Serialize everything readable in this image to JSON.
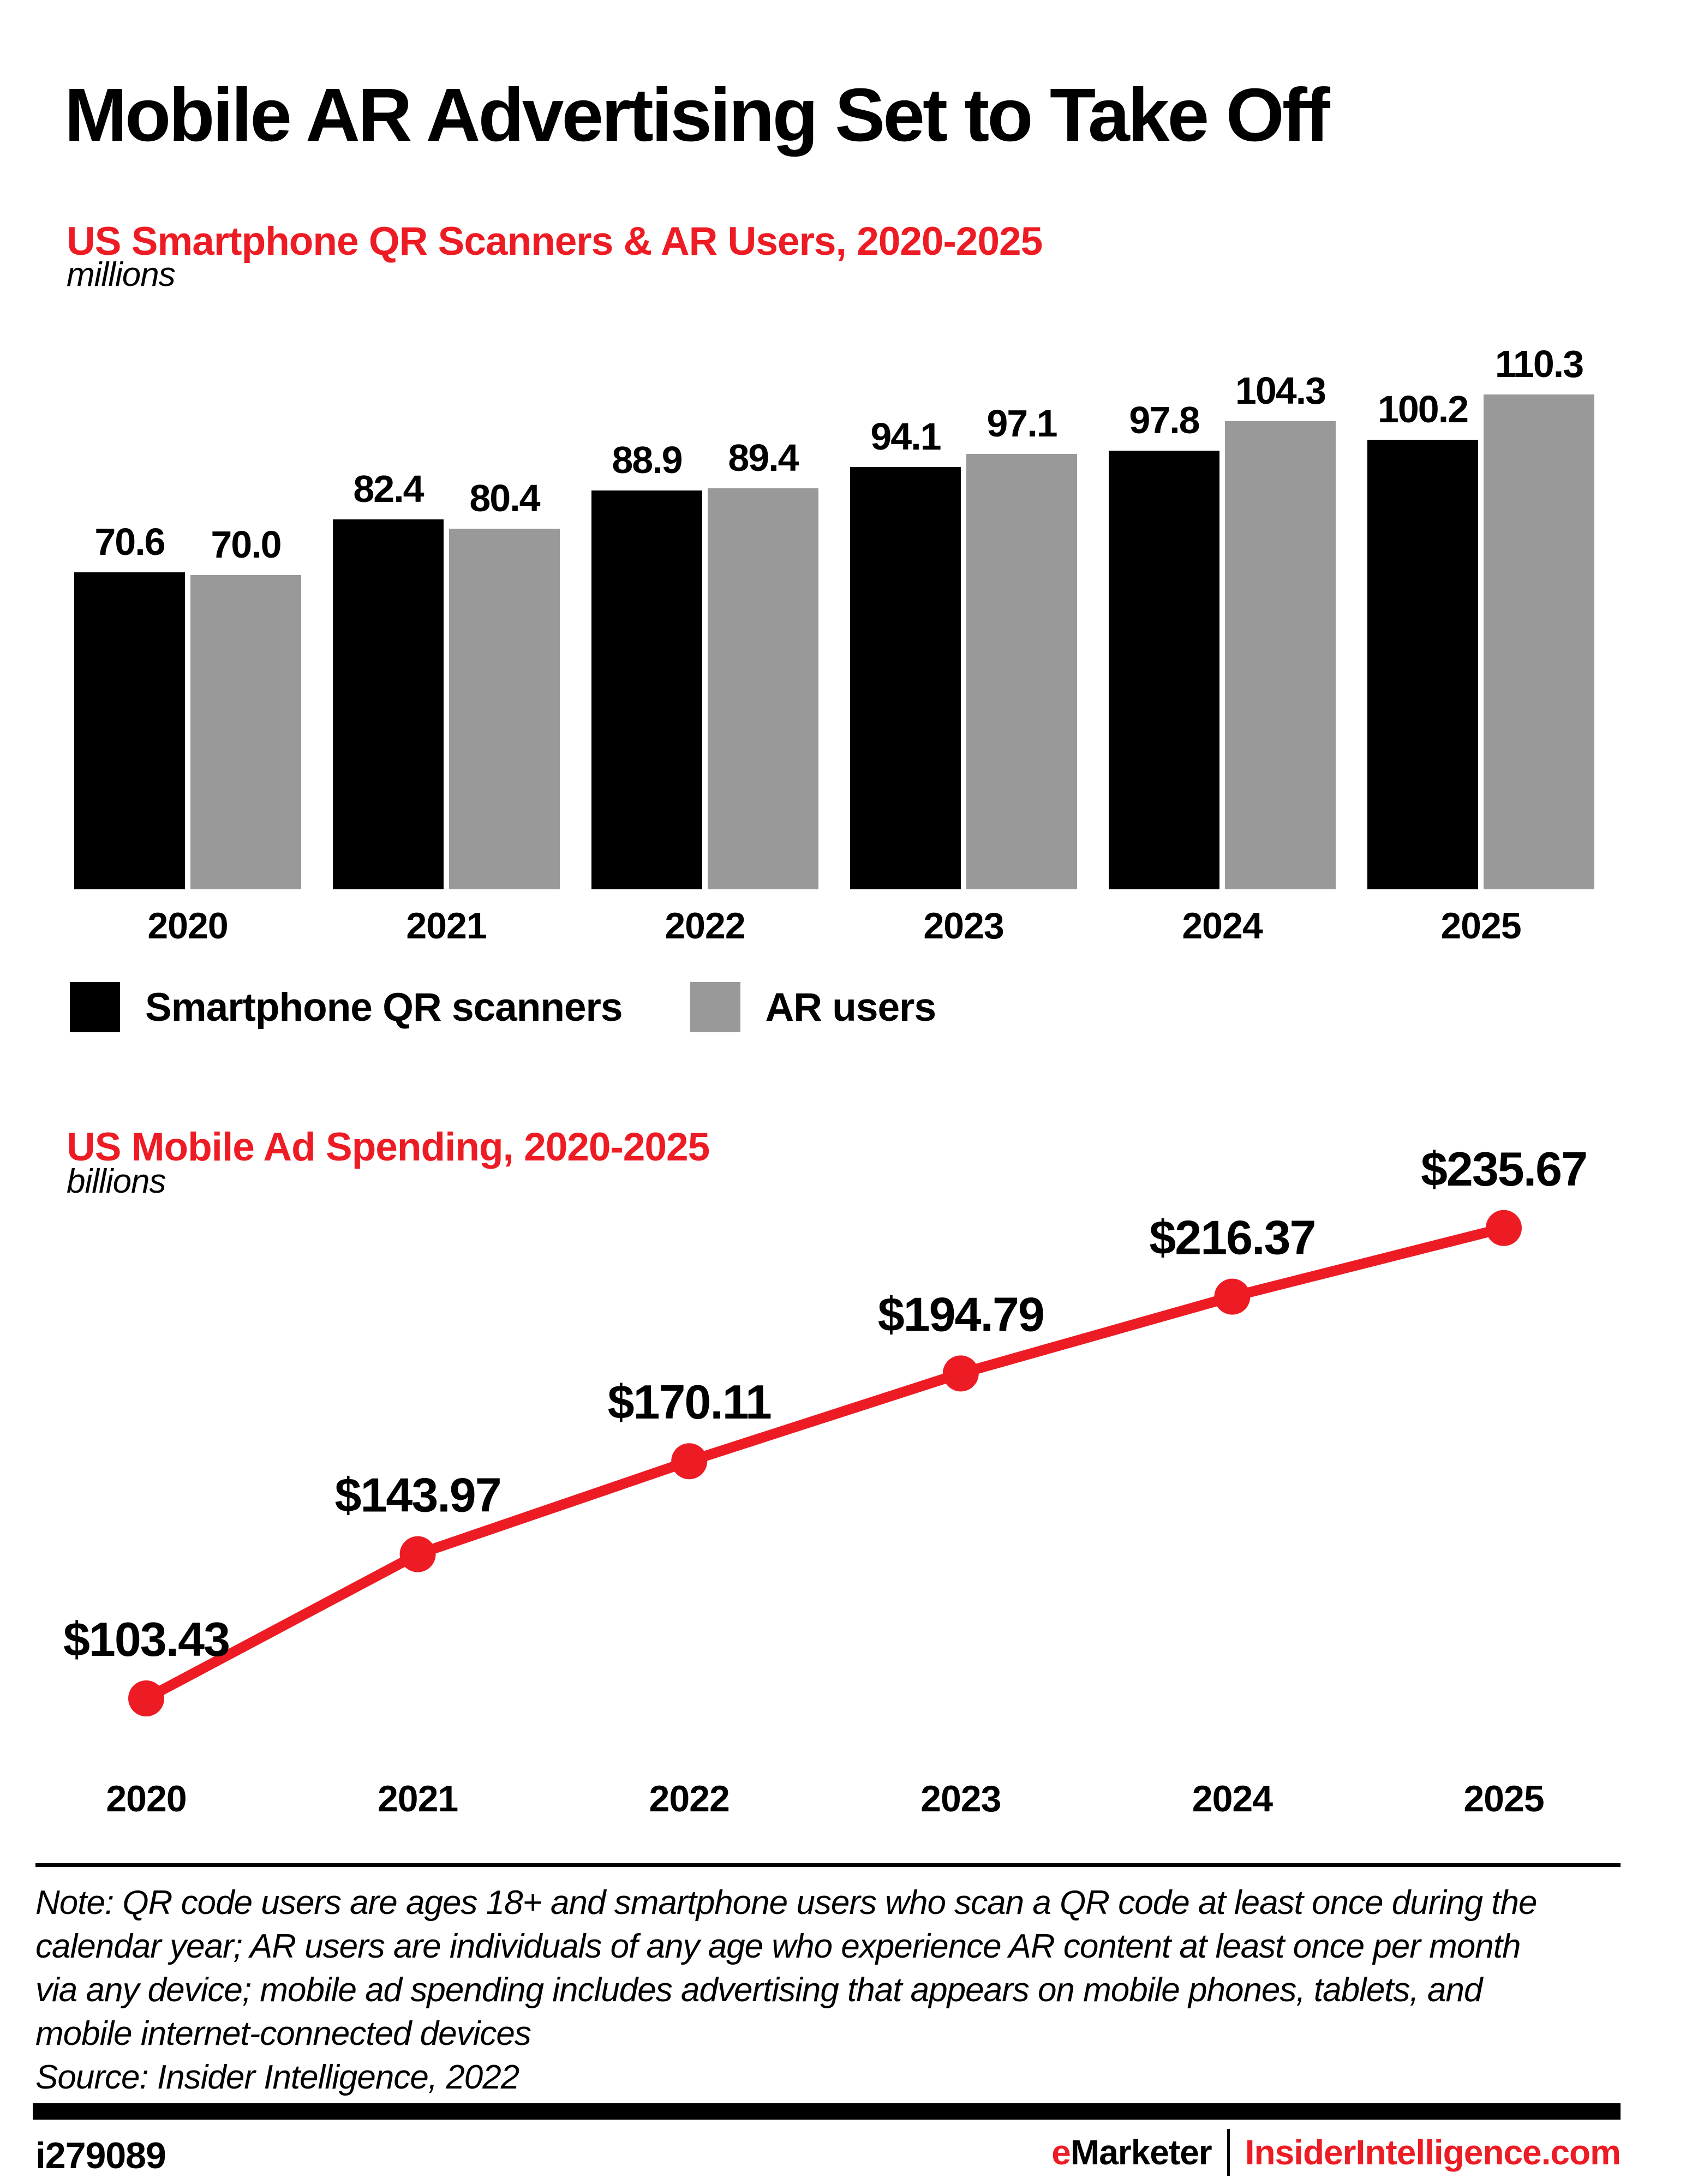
{
  "title": "Mobile AR Advertising Set to Take Off",
  "accent_color": "#ED1C24",
  "chart_data": [
    {
      "type": "bar",
      "title": "US Smartphone QR Scanners & AR Users, 2020-2025",
      "unit": "millions",
      "categories": [
        "2020",
        "2021",
        "2022",
        "2023",
        "2024",
        "2025"
      ],
      "series": [
        {
          "name": "Smartphone QR scanners",
          "color": "#000000",
          "values": [
            70.6,
            82.4,
            88.9,
            94.1,
            97.8,
            100.2
          ]
        },
        {
          "name": "AR users",
          "color": "#999999",
          "values": [
            70.0,
            80.4,
            89.4,
            97.1,
            104.3,
            110.3
          ]
        }
      ],
      "ylim": [
        0,
        110.3
      ],
      "grid": false,
      "value_labels": "above each bar, one decimal",
      "legend_position": "below chart"
    },
    {
      "type": "line",
      "title": "US Mobile Ad Spending, 2020-2025",
      "unit": "billions",
      "x": [
        "2020",
        "2021",
        "2022",
        "2023",
        "2024",
        "2025"
      ],
      "values": [
        103.43,
        143.97,
        170.11,
        194.79,
        216.37,
        235.67
      ],
      "labels": [
        "$103.43",
        "$143.97",
        "$170.11",
        "$194.79",
        "$216.37",
        "$235.67"
      ],
      "color": "#ED1C24",
      "grid": false,
      "axis": "no visible y-axis; point labels above markers"
    }
  ],
  "note": "Note: QR code users are ages 18+ and smartphone users who scan a QR code at least once during the calendar year; AR users are individuals of any age who experience AR content at least once per month via any device; mobile ad spending includes advertising that appears on mobile phones, tablets, and mobile internet-connected devices",
  "source": "Source: Insider Intelligence, 2022",
  "footer": {
    "id": "i279089",
    "brand_e": "e",
    "brand_rest": "Marketer",
    "separator": "|",
    "site": "InsiderIntelligence.com"
  }
}
